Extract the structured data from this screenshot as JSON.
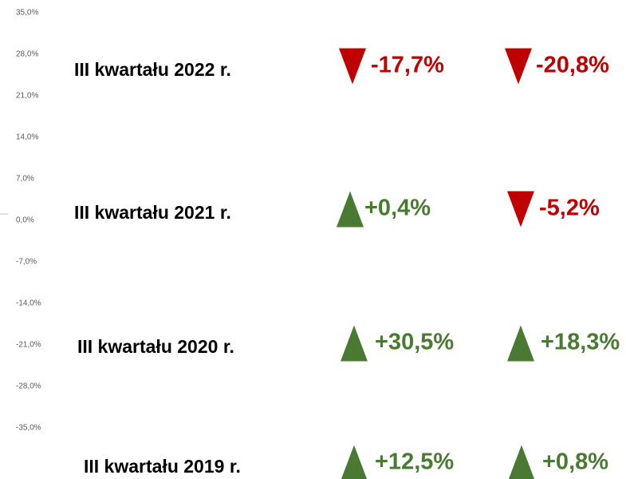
{
  "axis": {
    "ticks": [
      "35,0%",
      "28,0%",
      "21,0%",
      "14,0%",
      "7,0%",
      "0,0%",
      "-7,0%",
      "-14,0%",
      "-21,0%",
      "-28,0%",
      "-35,0%"
    ]
  },
  "colors": {
    "up": "#4a7a32",
    "down": "#c00000"
  },
  "rows": [
    {
      "label": "III kwartału 2022 r.",
      "values": [
        "-17,7%",
        "-20,8%"
      ]
    },
    {
      "label": "III kwartału 2021 r.",
      "values": [
        "+0,4%",
        "-5,2%"
      ]
    },
    {
      "label": "III kwartału 2020 r.",
      "values": [
        "+30,5%",
        "+18,3%"
      ]
    },
    {
      "label": "III kwartału 2019 r.",
      "values": [
        "+12,5%",
        "+0,8%"
      ]
    }
  ]
}
